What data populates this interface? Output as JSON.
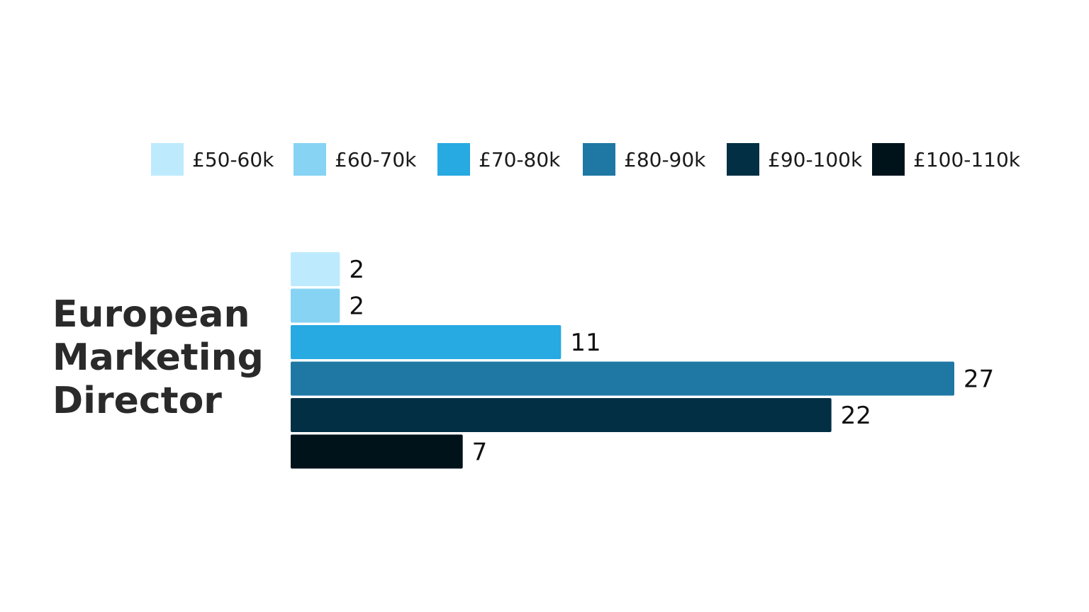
{
  "chart_data": {
    "type": "bar",
    "orientation": "horizontal",
    "categories": [
      "European Marketing Director"
    ],
    "series": [
      {
        "name": "£50-60k",
        "values": [
          2
        ],
        "color": "#BDEBFD"
      },
      {
        "name": "£60-70k",
        "values": [
          2
        ],
        "color": "#86D3F4"
      },
      {
        "name": "£70-80k",
        "values": [
          11
        ],
        "color": "#27A9E1"
      },
      {
        "name": "£80-90k",
        "values": [
          27
        ],
        "color": "#1F78A4"
      },
      {
        "name": "£90-100k",
        "values": [
          22
        ],
        "color": "#022F44"
      },
      {
        "name": "£100-110k",
        "values": [
          7
        ],
        "color": "#00131B"
      }
    ],
    "category_lines": [
      "European",
      "Marketing",
      "Director"
    ],
    "title": "",
    "xlabel": "",
    "ylabel": "",
    "xlim": [
      0,
      27
    ],
    "grid": false,
    "legend": "top"
  }
}
